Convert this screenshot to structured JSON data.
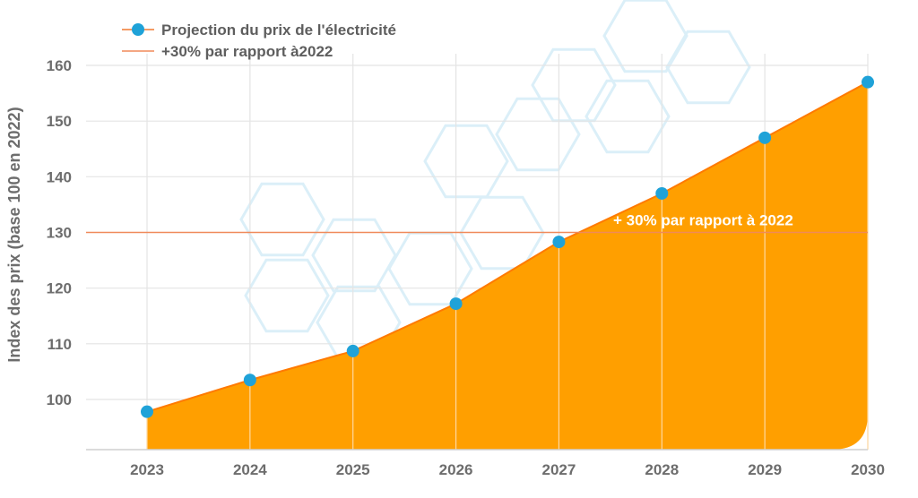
{
  "chart_data": {
    "type": "area",
    "ylabel": "Index des prix (base 100 en 2022)",
    "xlabel": "",
    "x": [
      2023,
      2024,
      2025,
      2026,
      2027,
      2028,
      2029,
      2030
    ],
    "series": [
      {
        "name": "Projection du prix de l'électricité",
        "values": [
          97.8,
          103.5,
          108.7,
          117.2,
          128.3,
          137.0,
          147.0,
          157.0
        ],
        "color": "#1fa2d8",
        "fill": "#ff9f00",
        "stroke": "#ff7a00"
      }
    ],
    "reference_line": {
      "name": "+30% par rapport à2022",
      "value": 130,
      "color": "#f08a5a",
      "annotation": "+   30% par rapport à 2022"
    },
    "yticks": [
      100,
      110,
      120,
      130,
      140,
      150,
      160
    ],
    "xticks": [
      "2023",
      "2024",
      "2025",
      "2026",
      "2027",
      "2028",
      "2029",
      "2030"
    ],
    "ylim": [
      92,
      161
    ],
    "grid": true,
    "legend": "top-left"
  }
}
